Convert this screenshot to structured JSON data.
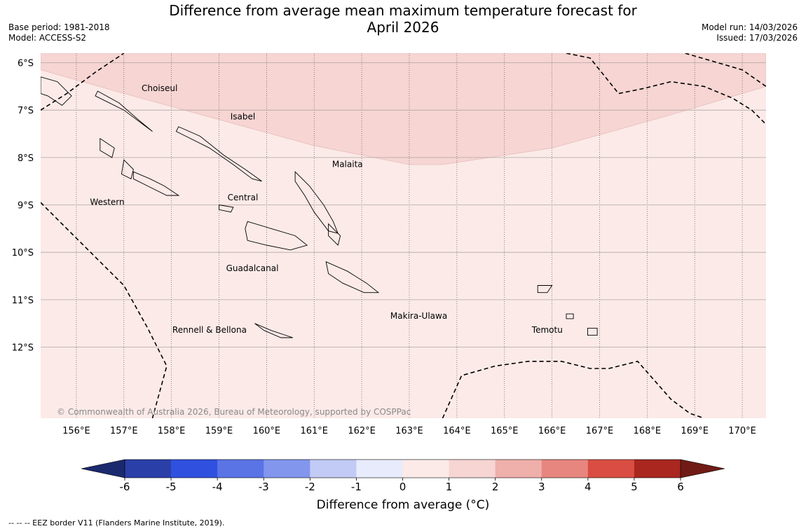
{
  "title": "Difference from average mean maximum temperature forecast for\nApril 2026",
  "meta_left": {
    "base_period": "Base period: 1981-2018",
    "model": "Model: ACCESS-S2"
  },
  "meta_right": {
    "model_run": "Model run: 14/03/2026",
    "issued": "Issued: 17/03/2026"
  },
  "copyright": "© Commonwealth of Australia 2026, Bureau of Meteorology, supported by COSPPac",
  "footer_note": "--  --  -- EEZ border V11 (Flanders Marine Institute, 2019).",
  "map": {
    "lon_range": [
      155.25,
      170.5
    ],
    "lat_range": [
      -13.5,
      -5.8
    ],
    "lon_ticks": [
      156,
      157,
      158,
      159,
      160,
      161,
      162,
      163,
      164,
      165,
      166,
      167,
      168,
      169,
      170
    ],
    "lon_tick_labels": [
      "156°E",
      "157°E",
      "158°E",
      "159°E",
      "160°E",
      "161°E",
      "162°E",
      "163°E",
      "164°E",
      "165°E",
      "166°E",
      "167°E",
      "168°E",
      "169°E",
      "170°E"
    ],
    "lat_ticks": [
      -6,
      -7,
      -8,
      -9,
      -10,
      -11,
      -12
    ],
    "lat_tick_labels": [
      "6°S",
      "7°S",
      "8°S",
      "9°S",
      "10°S",
      "11°S",
      "12°S"
    ],
    "background_color": "#fbeae8",
    "band_color": "#f6d5d3",
    "band_boundary": [
      [
        155.25,
        -6.15
      ],
      [
        157,
        -6.65
      ],
      [
        159,
        -7.2
      ],
      [
        161,
        -7.75
      ],
      [
        163,
        -8.15
      ],
      [
        163.7,
        -8.15
      ],
      [
        166,
        -7.8
      ],
      [
        168.5,
        -7.1
      ],
      [
        170.5,
        -6.5
      ]
    ],
    "regions": [
      {
        "name": "Choiseul",
        "lon": 157.75,
        "lat": -6.6
      },
      {
        "name": "Isabel",
        "lon": 159.5,
        "lat": -7.2
      },
      {
        "name": "Malaita",
        "lon": 161.7,
        "lat": -8.2
      },
      {
        "name": "Central",
        "lon": 159.5,
        "lat": -8.9
      },
      {
        "name": "Western",
        "lon": 156.65,
        "lat": -9.0
      },
      {
        "name": "Guadalcanal",
        "lon": 159.7,
        "lat": -10.4
      },
      {
        "name": "Makira-Ulawa",
        "lon": 163.2,
        "lat": -11.4
      },
      {
        "name": "Rennell & Bellona",
        "lon": 158.8,
        "lat": -11.7
      },
      {
        "name": "Temotu",
        "lon": 165.9,
        "lat": -11.7
      }
    ],
    "islands": [
      [
        [
          156.45,
          -6.6
        ],
        [
          156.9,
          -6.85
        ],
        [
          157.3,
          -7.2
        ],
        [
          157.6,
          -7.45
        ],
        [
          157.4,
          -7.3
        ],
        [
          157,
          -7
        ],
        [
          156.6,
          -6.8
        ],
        [
          156.4,
          -6.7
        ]
      ],
      [
        [
          158.15,
          -7.35
        ],
        [
          158.6,
          -7.55
        ],
        [
          159.1,
          -7.95
        ],
        [
          159.55,
          -8.25
        ],
        [
          159.9,
          -8.5
        ],
        [
          159.7,
          -8.45
        ],
        [
          159.3,
          -8.15
        ],
        [
          158.8,
          -7.8
        ],
        [
          158.3,
          -7.55
        ],
        [
          158.1,
          -7.45
        ]
      ],
      [
        [
          157.2,
          -8.3
        ],
        [
          157.55,
          -8.45
        ],
        [
          157.85,
          -8.6
        ],
        [
          158.15,
          -8.8
        ],
        [
          157.9,
          -8.8
        ],
        [
          157.5,
          -8.6
        ],
        [
          157.2,
          -8.45
        ]
      ],
      [
        [
          157.0,
          -8.05
        ],
        [
          157.2,
          -8.25
        ],
        [
          157.15,
          -8.45
        ],
        [
          156.95,
          -8.35
        ]
      ],
      [
        [
          156.5,
          -7.6
        ],
        [
          156.8,
          -7.8
        ],
        [
          156.75,
          -8.0
        ],
        [
          156.5,
          -7.85
        ]
      ],
      [
        [
          159.6,
          -9.35
        ],
        [
          160.1,
          -9.5
        ],
        [
          160.6,
          -9.65
        ],
        [
          160.85,
          -9.85
        ],
        [
          160.5,
          -9.95
        ],
        [
          160.0,
          -9.85
        ],
        [
          159.6,
          -9.75
        ],
        [
          159.55,
          -9.5
        ]
      ],
      [
        [
          160.6,
          -8.3
        ],
        [
          160.9,
          -8.6
        ],
        [
          161.2,
          -9.0
        ],
        [
          161.4,
          -9.35
        ],
        [
          161.5,
          -9.6
        ],
        [
          161.3,
          -9.55
        ],
        [
          161.0,
          -9.15
        ],
        [
          160.8,
          -8.8
        ],
        [
          160.6,
          -8.5
        ]
      ],
      [
        [
          161.3,
          -9.4
        ],
        [
          161.55,
          -9.65
        ],
        [
          161.5,
          -9.85
        ],
        [
          161.3,
          -9.65
        ]
      ],
      [
        [
          161.25,
          -10.2
        ],
        [
          161.7,
          -10.4
        ],
        [
          162.1,
          -10.65
        ],
        [
          162.35,
          -10.85
        ],
        [
          162.05,
          -10.85
        ],
        [
          161.6,
          -10.65
        ],
        [
          161.3,
          -10.45
        ]
      ],
      [
        [
          159.75,
          -11.5
        ],
        [
          160.1,
          -11.65
        ],
        [
          160.55,
          -11.8
        ],
        [
          160.3,
          -11.8
        ],
        [
          159.95,
          -11.65
        ]
      ],
      [
        [
          159.0,
          -9.0
        ],
        [
          159.3,
          -9.05
        ],
        [
          159.25,
          -9.15
        ],
        [
          159.0,
          -9.1
        ]
      ],
      [
        [
          165.7,
          -10.7
        ],
        [
          166.0,
          -10.7
        ],
        [
          165.9,
          -10.85
        ],
        [
          165.7,
          -10.85
        ]
      ],
      [
        [
          166.3,
          -11.3
        ],
        [
          166.45,
          -11.3
        ],
        [
          166.45,
          -11.4
        ],
        [
          166.3,
          -11.4
        ]
      ],
      [
        [
          166.75,
          -11.6
        ],
        [
          166.95,
          -11.6
        ],
        [
          166.95,
          -11.75
        ],
        [
          166.75,
          -11.75
        ]
      ],
      [
        [
          155.25,
          -6.3
        ],
        [
          155.6,
          -6.4
        ],
        [
          155.9,
          -6.7
        ],
        [
          155.7,
          -6.9
        ],
        [
          155.4,
          -6.7
        ],
        [
          155.25,
          -6.65
        ]
      ]
    ],
    "eez_lines": [
      [
        [
          155.25,
          -7.0
        ],
        [
          155.8,
          -6.65
        ],
        [
          156.4,
          -6.2
        ],
        [
          157,
          -5.8
        ]
      ],
      [
        [
          155.25,
          -8.95
        ],
        [
          155.8,
          -9.5
        ],
        [
          156.4,
          -10.1
        ],
        [
          157.0,
          -10.7
        ],
        [
          157.5,
          -11.6
        ],
        [
          157.9,
          -12.4
        ],
        [
          157.6,
          -13.5
        ]
      ],
      [
        [
          168.8,
          -5.8
        ],
        [
          170.0,
          -6.15
        ],
        [
          170.5,
          -6.5
        ]
      ],
      [
        [
          166.3,
          -5.8
        ],
        [
          166.8,
          -5.9
        ],
        [
          167.4,
          -6.65
        ],
        [
          167.9,
          -6.55
        ],
        [
          168.5,
          -6.4
        ],
        [
          169.2,
          -6.5
        ],
        [
          169.8,
          -6.75
        ],
        [
          170.2,
          -7.0
        ],
        [
          170.7,
          -7.5
        ],
        [
          171.0,
          -8.0
        ],
        [
          171.2,
          -8.3
        ],
        [
          171.5,
          -8.35
        ]
      ],
      [
        [
          163.7,
          -13.5
        ],
        [
          164.1,
          -12.6
        ],
        [
          164.8,
          -12.4
        ],
        [
          165.5,
          -12.3
        ],
        [
          166.2,
          -12.3
        ],
        [
          166.8,
          -12.45
        ],
        [
          167.2,
          -12.45
        ],
        [
          167.8,
          -12.3
        ],
        [
          168.5,
          -13.1
        ],
        [
          168.9,
          -13.4
        ],
        [
          169.2,
          -13.5
        ]
      ]
    ]
  },
  "colorbar": {
    "title": "Difference from average (°C)",
    "ticks": [
      "-6",
      "-5",
      "-4",
      "-3",
      "-2",
      "-1",
      "0",
      "1",
      "2",
      "3",
      "4",
      "5",
      "6"
    ],
    "low_extend_color": "#1b2a6e",
    "high_extend_color": "#701b15",
    "colors": [
      "#2a3fa8",
      "#3050e0",
      "#5a74e6",
      "#8296ed",
      "#c2cbf5",
      "#e7ebfb",
      "#fbeae8",
      "#f6d5d3",
      "#efafab",
      "#e7867f",
      "#da4d42",
      "#a9271f"
    ]
  }
}
